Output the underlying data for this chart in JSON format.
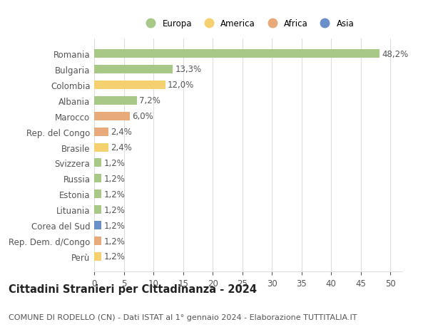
{
  "countries": [
    "Romania",
    "Bulgaria",
    "Colombia",
    "Albania",
    "Marocco",
    "Rep. del Congo",
    "Brasile",
    "Svizzera",
    "Russia",
    "Estonia",
    "Lituania",
    "Corea del Sud",
    "Rep. Dem. d/Congo",
    "Perù"
  ],
  "values": [
    48.2,
    13.3,
    12.0,
    7.2,
    6.0,
    2.4,
    2.4,
    1.2,
    1.2,
    1.2,
    1.2,
    1.2,
    1.2,
    1.2
  ],
  "labels": [
    "48,2%",
    "13,3%",
    "12,0%",
    "7,2%",
    "6,0%",
    "2,4%",
    "2,4%",
    "1,2%",
    "1,2%",
    "1,2%",
    "1,2%",
    "1,2%",
    "1,2%",
    "1,2%"
  ],
  "continents": [
    "Europa",
    "Europa",
    "America",
    "Europa",
    "Africa",
    "Africa",
    "America",
    "Europa",
    "Europa",
    "Europa",
    "Europa",
    "Asia",
    "Africa",
    "America"
  ],
  "continent_colors": {
    "Europa": "#a8c888",
    "America": "#f5d06e",
    "Africa": "#e8aa7a",
    "Asia": "#6b8fc9"
  },
  "legend_order": [
    "Europa",
    "America",
    "Africa",
    "Asia"
  ],
  "legend_colors": [
    "#a8c888",
    "#f5d06e",
    "#e8aa7a",
    "#6b8fc9"
  ],
  "xlim": [
    0,
    52
  ],
  "xticks": [
    0,
    5,
    10,
    15,
    20,
    25,
    30,
    35,
    40,
    45,
    50
  ],
  "title": "Cittadini Stranieri per Cittadinanza - 2024",
  "subtitle": "COMUNE DI RODELLO (CN) - Dati ISTAT al 1° gennaio 2024 - Elaborazione TUTTITALIA.IT",
  "background_color": "#ffffff",
  "bar_height": 0.55,
  "grid_color": "#dddddd",
  "text_color": "#555555",
  "label_fontsize": 8.5,
  "title_fontsize": 10.5,
  "subtitle_fontsize": 8.0
}
